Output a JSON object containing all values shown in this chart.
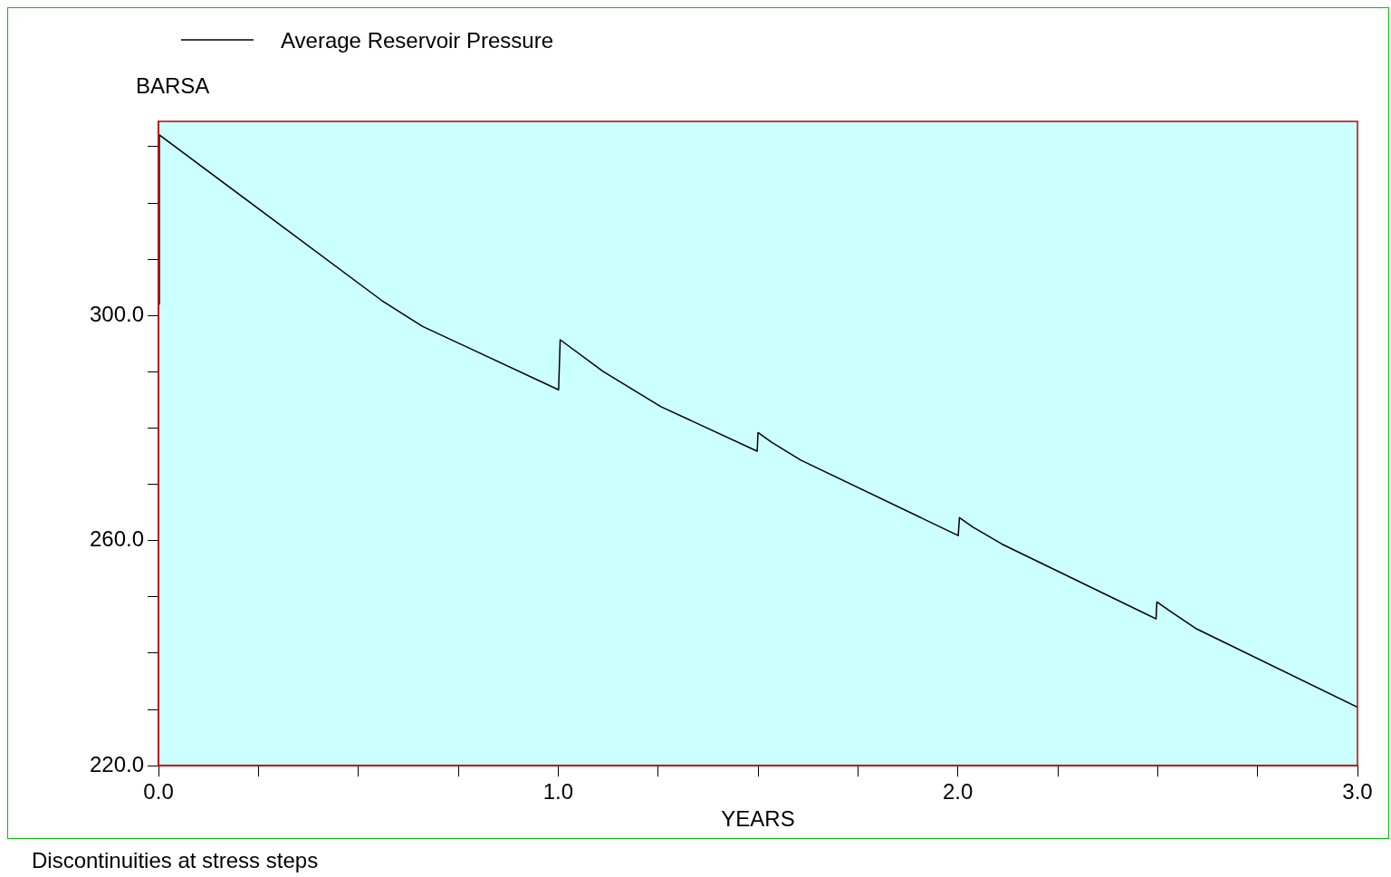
{
  "chart_data": {
    "type": "line",
    "ylabel": "BARSA",
    "xlabel": "YEARS",
    "legend": "top left",
    "annotations": [
      "Discontinuities at stress steps"
    ],
    "xlim": [
      0,
      3
    ],
    "ylim": [
      220,
      334.5
    ],
    "xticks": [
      {
        "value": 0,
        "label": "0.0"
      },
      {
        "value": 0.25,
        "label": null
      },
      {
        "value": 0.5,
        "label": null
      },
      {
        "value": 0.75,
        "label": null
      },
      {
        "value": 1,
        "label": "1.0"
      },
      {
        "value": 1.25,
        "label": null
      },
      {
        "value": 1.5,
        "label": null
      },
      {
        "value": 1.75,
        "label": null
      },
      {
        "value": 2,
        "label": "2.0"
      },
      {
        "value": 2.25,
        "label": null
      },
      {
        "value": 2.5,
        "label": null
      },
      {
        "value": 2.75,
        "label": null
      },
      {
        "value": 3,
        "label": "3.0"
      }
    ],
    "yticks": [
      {
        "value": 220,
        "label": "220.0"
      },
      {
        "value": 230,
        "label": null
      },
      {
        "value": 240,
        "label": null
      },
      {
        "value": 250,
        "label": null
      },
      {
        "value": 260,
        "label": "260.0"
      },
      {
        "value": 270,
        "label": null
      },
      {
        "value": 280,
        "label": null
      },
      {
        "value": 290,
        "label": null
      },
      {
        "value": 300,
        "label": "300.0"
      },
      {
        "value": 310,
        "label": null
      },
      {
        "value": 320,
        "label": null
      },
      {
        "value": 330,
        "label": null
      }
    ],
    "marker": "none",
    "line_style": "solid",
    "series": [
      {
        "name": "Average Reservoir Pressure",
        "color": "#000000",
        "x": [
          0,
          0.002,
          0.558,
          0.66,
          1.001,
          1.005,
          1.112,
          1.257,
          1.498,
          1.5,
          1.534,
          1.607,
          2.001,
          2.004,
          2.038,
          2.11,
          2.496,
          2.498,
          2.533,
          2.598,
          3
        ],
        "values": [
          302,
          332.1,
          302.7,
          298.1,
          286.8,
          295.7,
          290.1,
          283.8,
          275.9,
          279.2,
          277.5,
          274.3,
          260.9,
          264.1,
          262.4,
          259.4,
          246.1,
          249.1,
          247.4,
          244.3,
          230.4
        ]
      }
    ]
  }
}
